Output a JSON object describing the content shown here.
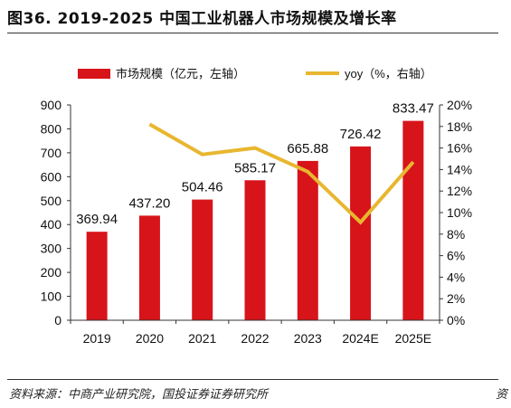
{
  "title": "图36. 2019-2025 中国工业机器人市场规模及增长率",
  "source": "资料来源：中商产业研究院，国投证券证券研究所",
  "corner_mark": "资",
  "chart_data": {
    "type": "bar",
    "categories": [
      "2019",
      "2020",
      "2021",
      "2022",
      "2023",
      "2024E",
      "2025E"
    ],
    "series": [
      {
        "name": "市场规模（亿元，左轴）",
        "type": "bar",
        "axis": "left",
        "color": "#d7141a",
        "values": [
          369.94,
          437.2,
          504.46,
          585.17,
          665.88,
          726.42,
          833.47
        ],
        "labels": [
          "369.94",
          "437.20",
          "504.46",
          "585.17",
          "665.88",
          "726.42",
          "833.47"
        ]
      },
      {
        "name": "yoy（%，右轴）",
        "type": "line",
        "axis": "right",
        "color": "#e8b630",
        "x": [
          "2020",
          "2021",
          "2022",
          "2023",
          "2024E",
          "2025E"
        ],
        "values": [
          18.2,
          15.4,
          16.0,
          13.8,
          9.1,
          14.7
        ]
      }
    ],
    "y_left": {
      "min": 0,
      "max": 900,
      "ticks": [
        "0",
        "100",
        "200",
        "300",
        "400",
        "500",
        "600",
        "700",
        "800",
        "900"
      ]
    },
    "y_right": {
      "min": 0,
      "max": 20,
      "ticks": [
        "0%",
        "2%",
        "4%",
        "6%",
        "8%",
        "10%",
        "12%",
        "14%",
        "16%",
        "18%",
        "20%"
      ]
    },
    "legend_position": "top",
    "grid": false
  }
}
